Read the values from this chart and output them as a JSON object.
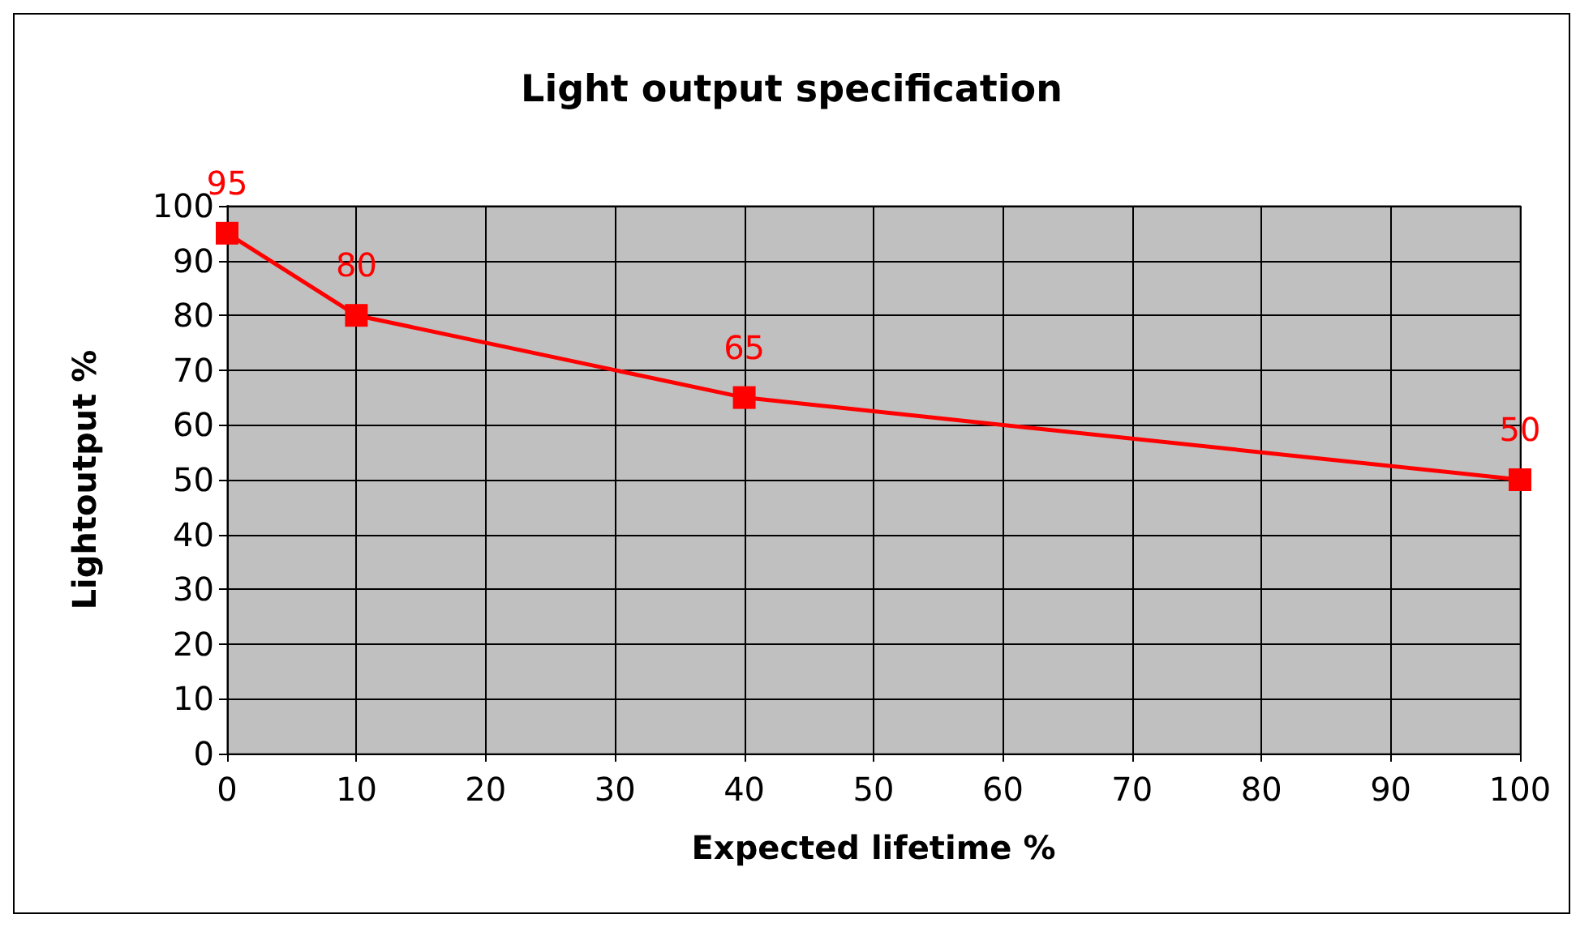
{
  "chart_data": {
    "type": "line",
    "title": "Light output specification",
    "xlabel": "Expected lifetime %",
    "ylabel": "Lightoutput %",
    "x": [
      0,
      10,
      40,
      100
    ],
    "series": [
      {
        "color": "#ff0000",
        "values": [
          95,
          80,
          65,
          50
        ]
      }
    ],
    "xlim": [
      0,
      100
    ],
    "xticks": [
      0,
      10,
      20,
      30,
      40,
      50,
      60,
      70,
      80,
      90,
      100
    ],
    "ylim": [
      0,
      100
    ],
    "yticks": [
      0,
      10,
      20,
      30,
      40,
      50,
      60,
      70,
      80,
      90,
      100
    ],
    "grid": true,
    "marker": "square",
    "line_style": "solid",
    "data_labels": true
  }
}
